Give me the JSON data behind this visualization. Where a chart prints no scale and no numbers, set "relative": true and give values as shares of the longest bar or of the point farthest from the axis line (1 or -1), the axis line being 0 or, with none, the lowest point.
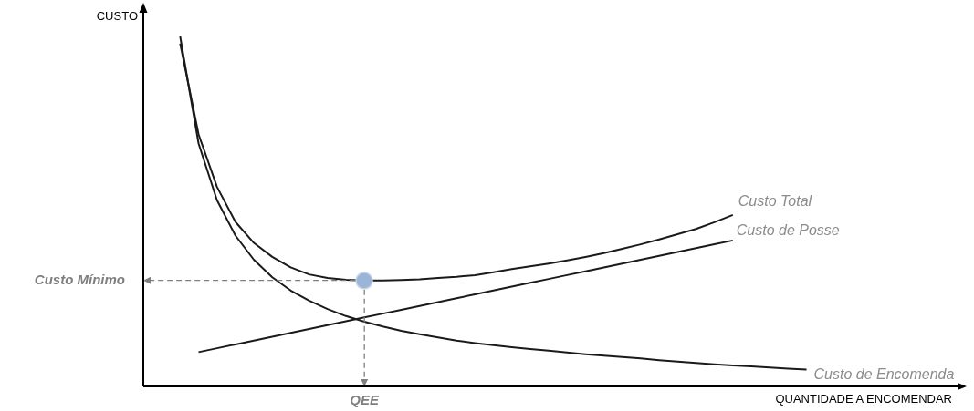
{
  "chart_data": {
    "type": "line",
    "relative": true,
    "xlabel": "QUANTIDADE A ENCOMENDAR",
    "ylabel": "CUSTO",
    "legend": false,
    "marker": "none",
    "line_style": "solid",
    "categories": [
      null,
      null,
      null,
      null,
      null,
      null,
      null,
      null,
      null,
      null,
      null,
      null,
      null,
      null,
      null,
      null,
      null,
      null,
      null,
      null,
      null,
      null,
      null,
      null,
      null,
      null,
      null,
      null,
      null,
      null,
      null,
      null,
      null,
      null,
      null,
      null,
      null,
      null,
      null,
      null,
      null,
      null,
      null,
      null,
      null
    ],
    "series": [
      {
        "name": "Custo Total",
        "color": "#1a1a1a",
        "values": [
          null,
          null,
          0.98,
          0.72,
          0.57,
          0.47,
          0.41,
          0.37,
          0.34,
          0.32,
          0.31,
          0.305,
          0.303,
          0.303,
          0.304,
          0.306,
          0.31,
          0.313,
          0.318,
          0.326,
          0.335,
          0.343,
          0.351,
          0.36,
          0.37,
          0.381,
          0.393,
          0.406,
          0.42,
          0.435,
          0.45,
          0.469,
          0.49,
          null,
          null,
          null,
          null,
          null,
          null,
          null,
          null,
          null,
          null,
          null,
          null
        ]
      },
      {
        "name": "Custo de Posse",
        "color": "#1a1a1a",
        "values": [
          null,
          null,
          null,
          0.098,
          0.109,
          0.12,
          0.131,
          0.142,
          0.153,
          0.164,
          0.175,
          0.186,
          0.197,
          0.208,
          0.219,
          0.23,
          0.241,
          0.252,
          0.263,
          0.274,
          0.285,
          0.296,
          0.307,
          0.318,
          0.329,
          0.34,
          0.351,
          0.362,
          0.373,
          0.384,
          0.395,
          0.406,
          0.417,
          null,
          null,
          null,
          null,
          null,
          null,
          null,
          null,
          null,
          null,
          null,
          null
        ]
      },
      {
        "name": "Custo de Encomenda",
        "color": "#1a1a1a",
        "values": [
          null,
          null,
          1.0,
          0.694,
          0.532,
          0.431,
          0.362,
          0.312,
          0.274,
          0.245,
          0.221,
          0.201,
          0.185,
          0.171,
          0.159,
          0.149,
          0.14,
          0.131,
          0.124,
          0.118,
          0.112,
          0.107,
          0.102,
          0.097,
          0.092,
          0.088,
          0.084,
          0.08,
          0.075,
          0.071,
          0.067,
          0.063,
          0.06,
          0.057,
          0.054,
          0.051,
          0.048,
          null,
          null,
          null,
          null,
          null,
          null,
          null,
          null
        ]
      }
    ],
    "annotations": [
      "Custo Mínimo",
      "QEE"
    ]
  }
}
